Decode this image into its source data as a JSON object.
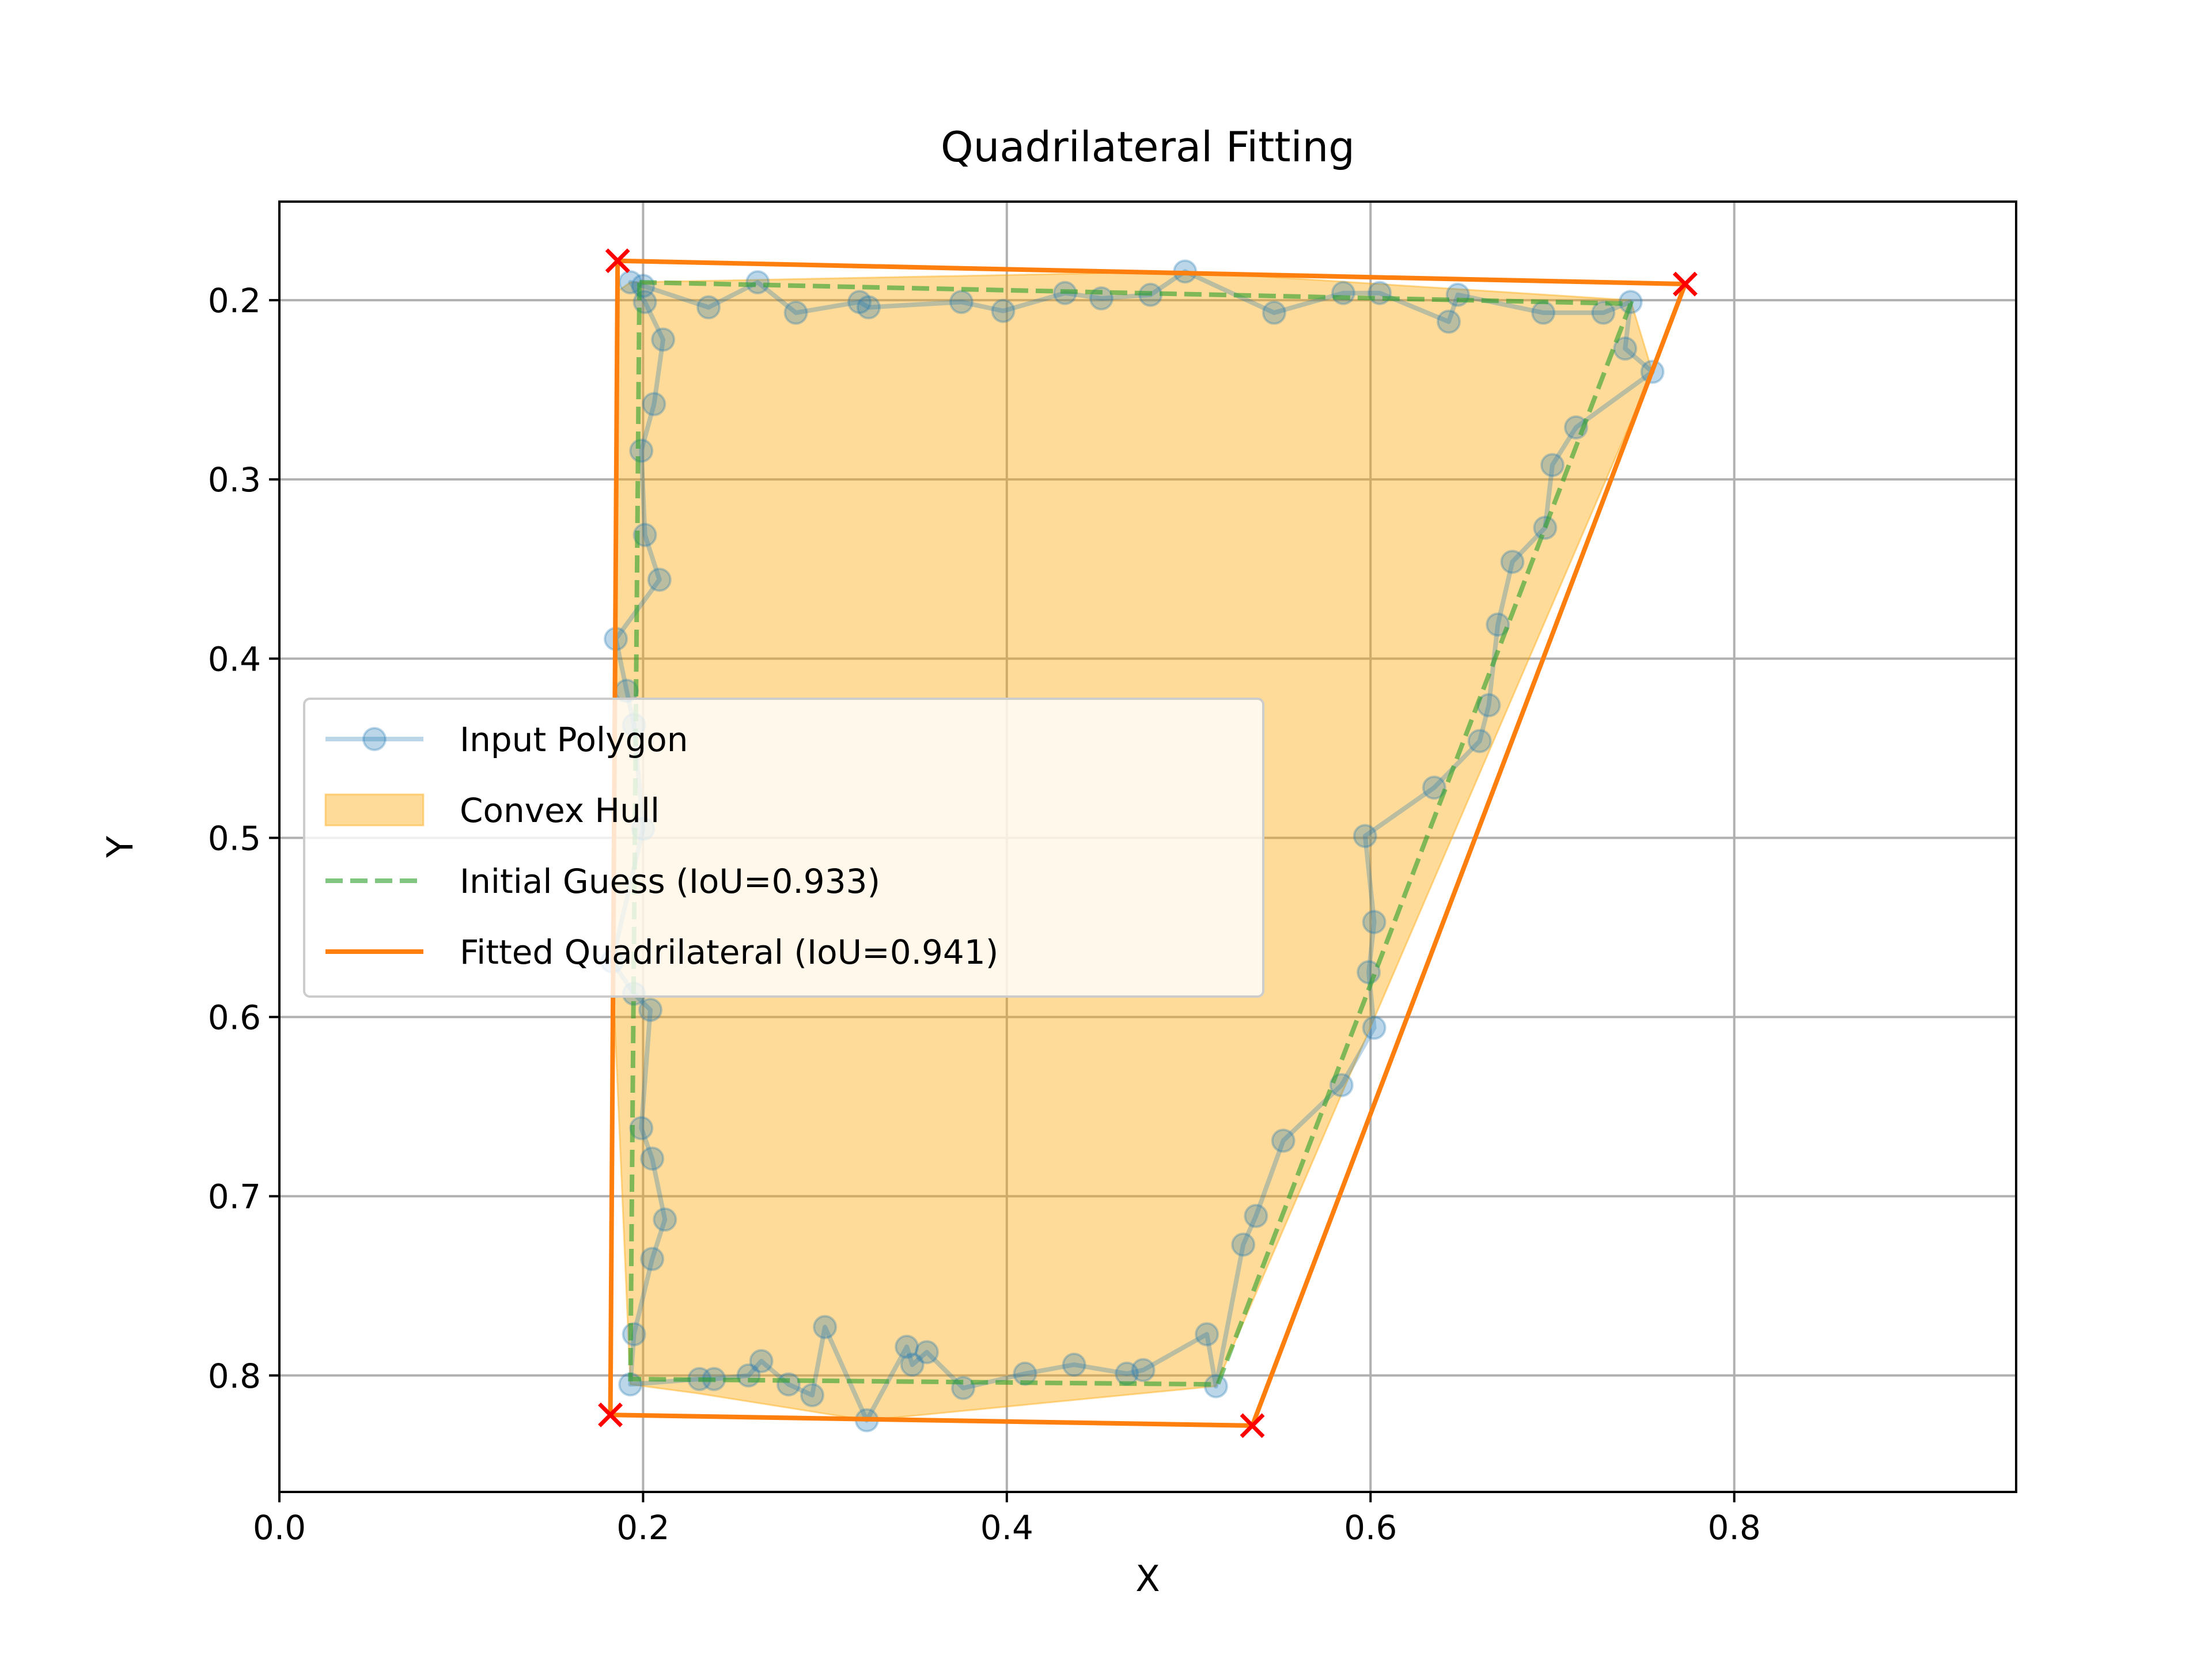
{
  "chart_data": {
    "type": "line",
    "title": "Quadrilateral Fitting",
    "xlabel": "X",
    "ylabel": "Y",
    "xlim": [
      0.0,
      0.955
    ],
    "ylim": [
      0.865,
      0.145
    ],
    "y_inverted": true,
    "grid": true,
    "legend_placement": "center-left",
    "x_ticks": [
      {
        "value": 0.0,
        "label": "0.0"
      },
      {
        "value": 0.2,
        "label": "0.2"
      },
      {
        "value": 0.4,
        "label": "0.4"
      },
      {
        "value": 0.6,
        "label": "0.6"
      },
      {
        "value": 0.8,
        "label": "0.8"
      }
    ],
    "y_ticks": [
      {
        "value": 0.2,
        "label": "0.2"
      },
      {
        "value": 0.3,
        "label": "0.3"
      },
      {
        "value": 0.4,
        "label": "0.4"
      },
      {
        "value": 0.5,
        "label": "0.5"
      },
      {
        "value": 0.6,
        "label": "0.6"
      },
      {
        "value": 0.7,
        "label": "0.7"
      },
      {
        "value": 0.8,
        "label": "0.8"
      }
    ],
    "series": [
      {
        "name": "Input Polygon",
        "kind": "line-markers",
        "color": "#1f77b4",
        "closed": true,
        "points": [
          [
            0.193,
            0.19
          ],
          [
            0.2,
            0.192
          ],
          [
            0.236,
            0.204
          ],
          [
            0.263,
            0.19
          ],
          [
            0.284,
            0.207
          ],
          [
            0.319,
            0.201
          ],
          [
            0.324,
            0.204
          ],
          [
            0.375,
            0.201
          ],
          [
            0.398,
            0.206
          ],
          [
            0.432,
            0.196
          ],
          [
            0.452,
            0.199
          ],
          [
            0.479,
            0.197
          ],
          [
            0.498,
            0.184
          ],
          [
            0.547,
            0.207
          ],
          [
            0.585,
            0.196
          ],
          [
            0.605,
            0.196
          ],
          [
            0.643,
            0.212
          ],
          [
            0.648,
            0.197
          ],
          [
            0.695,
            0.207
          ],
          [
            0.728,
            0.207
          ],
          [
            0.743,
            0.201
          ],
          [
            0.74,
            0.227
          ],
          [
            0.755,
            0.24
          ],
          [
            0.713,
            0.271
          ],
          [
            0.7,
            0.292
          ],
          [
            0.696,
            0.327
          ],
          [
            0.678,
            0.346
          ],
          [
            0.67,
            0.381
          ],
          [
            0.665,
            0.426
          ],
          [
            0.66,
            0.446
          ],
          [
            0.635,
            0.472
          ],
          [
            0.597,
            0.499
          ],
          [
            0.602,
            0.547
          ],
          [
            0.599,
            0.575
          ],
          [
            0.602,
            0.606
          ],
          [
            0.584,
            0.638
          ],
          [
            0.552,
            0.669
          ],
          [
            0.537,
            0.711
          ],
          [
            0.53,
            0.727
          ],
          [
            0.515,
            0.806
          ],
          [
            0.51,
            0.777
          ],
          [
            0.475,
            0.797
          ],
          [
            0.466,
            0.799
          ],
          [
            0.437,
            0.794
          ],
          [
            0.41,
            0.799
          ],
          [
            0.376,
            0.807
          ],
          [
            0.356,
            0.787
          ],
          [
            0.348,
            0.794
          ],
          [
            0.345,
            0.784
          ],
          [
            0.323,
            0.825
          ],
          [
            0.3,
            0.773
          ],
          [
            0.293,
            0.811
          ],
          [
            0.28,
            0.805
          ],
          [
            0.265,
            0.792
          ],
          [
            0.258,
            0.8
          ],
          [
            0.239,
            0.802
          ],
          [
            0.231,
            0.802
          ],
          [
            0.193,
            0.805
          ],
          [
            0.195,
            0.777
          ],
          [
            0.205,
            0.735
          ],
          [
            0.212,
            0.713
          ],
          [
            0.205,
            0.679
          ],
          [
            0.199,
            0.662
          ],
          [
            0.204,
            0.596
          ],
          [
            0.195,
            0.587
          ],
          [
            0.183,
            0.569
          ],
          [
            0.2,
            0.495
          ],
          [
            0.195,
            0.437
          ],
          [
            0.191,
            0.418
          ],
          [
            0.185,
            0.389
          ],
          [
            0.209,
            0.356
          ],
          [
            0.201,
            0.331
          ],
          [
            0.199,
            0.284
          ],
          [
            0.206,
            0.258
          ],
          [
            0.211,
            0.222
          ],
          [
            0.201,
            0.201
          ]
        ]
      },
      {
        "name": "Convex Hull",
        "kind": "fill",
        "color": "#ffa500",
        "points": [
          [
            0.186,
            0.195
          ],
          [
            0.193,
            0.19
          ],
          [
            0.498,
            0.184
          ],
          [
            0.743,
            0.2
          ],
          [
            0.755,
            0.24
          ],
          [
            0.515,
            0.806
          ],
          [
            0.323,
            0.825
          ],
          [
            0.23,
            0.81
          ],
          [
            0.193,
            0.805
          ],
          [
            0.183,
            0.569
          ],
          [
            0.185,
            0.389
          ]
        ]
      },
      {
        "name": "Initial Guess (IoU=0.933)",
        "kind": "dashed-line",
        "color": "#2ca02c",
        "closed": true,
        "points": [
          [
            0.198,
            0.19
          ],
          [
            0.743,
            0.202
          ],
          [
            0.516,
            0.805
          ],
          [
            0.193,
            0.802
          ]
        ]
      },
      {
        "name": "Fitted Quadrilateral (IoU=0.941)",
        "kind": "line",
        "color": "#ff7f0e",
        "closed": true,
        "points": [
          [
            0.186,
            0.178
          ],
          [
            0.773,
            0.191
          ],
          [
            0.535,
            0.828
          ],
          [
            0.182,
            0.822
          ]
        ]
      }
    ],
    "corner_markers": {
      "color": "#ff0000",
      "symbol": "x",
      "points": [
        [
          0.186,
          0.178
        ],
        [
          0.773,
          0.191
        ],
        [
          0.535,
          0.828
        ],
        [
          0.182,
          0.822
        ]
      ]
    },
    "colors": {
      "grid": "#b0b0b0",
      "axes": "#000000",
      "legend_border": "#cccccc"
    }
  }
}
